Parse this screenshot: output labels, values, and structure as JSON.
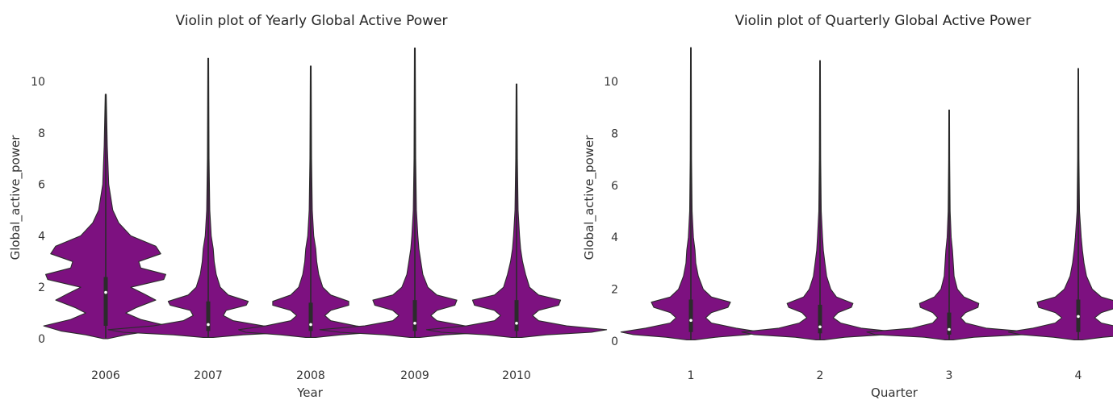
{
  "chart_data": [
    {
      "type": "violin",
      "title": "Violin plot of Yearly Global Active Power",
      "xlabel": "Year",
      "ylabel": "Global_active_power",
      "categories": [
        "2006",
        "2007",
        "2008",
        "2009",
        "2010"
      ],
      "ylim": [
        -0.3,
        11.3
      ],
      "yticks": [
        "0",
        "2",
        "4",
        "6",
        "8",
        "10"
      ],
      "grid": false,
      "fill_color": "#7d1180",
      "outline_color": "#2b2b2b",
      "violins": [
        {
          "category": "2006",
          "min": 0.0,
          "max": 9.5,
          "q1": 0.5,
          "median": 1.8,
          "q3": 2.4,
          "density": [
            [
              0.0,
              0.02
            ],
            [
              0.15,
              0.2
            ],
            [
              0.3,
              0.45
            ],
            [
              0.5,
              0.62
            ],
            [
              0.75,
              0.35
            ],
            [
              1.0,
              0.2
            ],
            [
              1.2,
              0.3
            ],
            [
              1.5,
              0.5
            ],
            [
              1.75,
              0.38
            ],
            [
              2.0,
              0.25
            ],
            [
              2.3,
              0.58
            ],
            [
              2.5,
              0.6
            ],
            [
              2.75,
              0.35
            ],
            [
              3.0,
              0.33
            ],
            [
              3.3,
              0.55
            ],
            [
              3.6,
              0.5
            ],
            [
              4.0,
              0.25
            ],
            [
              4.5,
              0.13
            ],
            [
              5.0,
              0.07
            ],
            [
              6.0,
              0.03
            ],
            [
              7.5,
              0.015
            ],
            [
              9.5,
              0.005
            ]
          ]
        },
        {
          "category": "2007",
          "min": 0.05,
          "max": 10.9,
          "q1": 0.3,
          "median": 0.55,
          "q3": 1.45,
          "density": [
            [
              0.05,
              0.05
            ],
            [
              0.15,
              0.35
            ],
            [
              0.25,
              0.85
            ],
            [
              0.35,
              1.0
            ],
            [
              0.5,
              0.55
            ],
            [
              0.7,
              0.25
            ],
            [
              0.9,
              0.15
            ],
            [
              1.1,
              0.18
            ],
            [
              1.3,
              0.38
            ],
            [
              1.45,
              0.4
            ],
            [
              1.7,
              0.2
            ],
            [
              2.0,
              0.12
            ],
            [
              2.5,
              0.08
            ],
            [
              3.0,
              0.06
            ],
            [
              3.5,
              0.05
            ],
            [
              4.0,
              0.03
            ],
            [
              5.0,
              0.015
            ],
            [
              7.0,
              0.008
            ],
            [
              10.9,
              0.004
            ]
          ]
        },
        {
          "category": "2008",
          "min": 0.05,
          "max": 10.6,
          "q1": 0.3,
          "median": 0.55,
          "q3": 1.4,
          "density": [
            [
              0.05,
              0.05
            ],
            [
              0.15,
              0.3
            ],
            [
              0.25,
              0.65
            ],
            [
              0.35,
              0.72
            ],
            [
              0.5,
              0.45
            ],
            [
              0.7,
              0.2
            ],
            [
              0.9,
              0.14
            ],
            [
              1.1,
              0.2
            ],
            [
              1.3,
              0.38
            ],
            [
              1.45,
              0.38
            ],
            [
              1.7,
              0.2
            ],
            [
              2.0,
              0.12
            ],
            [
              2.5,
              0.08
            ],
            [
              3.0,
              0.06
            ],
            [
              3.5,
              0.05
            ],
            [
              4.0,
              0.03
            ],
            [
              5.0,
              0.015
            ],
            [
              7.0,
              0.008
            ],
            [
              10.6,
              0.004
            ]
          ]
        },
        {
          "category": "2009",
          "min": 0.05,
          "max": 11.3,
          "q1": 0.3,
          "median": 0.6,
          "q3": 1.5,
          "density": [
            [
              0.05,
              0.05
            ],
            [
              0.15,
              0.3
            ],
            [
              0.25,
              0.75
            ],
            [
              0.35,
              0.95
            ],
            [
              0.5,
              0.5
            ],
            [
              0.7,
              0.22
            ],
            [
              0.9,
              0.16
            ],
            [
              1.1,
              0.22
            ],
            [
              1.3,
              0.4
            ],
            [
              1.5,
              0.42
            ],
            [
              1.7,
              0.22
            ],
            [
              2.0,
              0.13
            ],
            [
              2.5,
              0.08
            ],
            [
              3.0,
              0.06
            ],
            [
              3.5,
              0.04
            ],
            [
              4.0,
              0.03
            ],
            [
              5.0,
              0.015
            ],
            [
              7.0,
              0.008
            ],
            [
              11.3,
              0.004
            ]
          ]
        },
        {
          "category": "2010",
          "min": 0.05,
          "max": 9.9,
          "q1": 0.3,
          "median": 0.6,
          "q3": 1.5,
          "density": [
            [
              0.05,
              0.05
            ],
            [
              0.15,
              0.3
            ],
            [
              0.25,
              0.75
            ],
            [
              0.35,
              0.9
            ],
            [
              0.5,
              0.5
            ],
            [
              0.7,
              0.22
            ],
            [
              0.9,
              0.16
            ],
            [
              1.1,
              0.22
            ],
            [
              1.3,
              0.42
            ],
            [
              1.5,
              0.44
            ],
            [
              1.7,
              0.22
            ],
            [
              2.0,
              0.13
            ],
            [
              2.5,
              0.09
            ],
            [
              3.0,
              0.06
            ],
            [
              3.5,
              0.04
            ],
            [
              4.0,
              0.03
            ],
            [
              5.0,
              0.015
            ],
            [
              7.0,
              0.008
            ],
            [
              9.9,
              0.004
            ]
          ]
        }
      ]
    },
    {
      "type": "violin",
      "title": "Violin plot of Quarterly Global Active Power",
      "xlabel": "Quarter",
      "ylabel": "Global_active_power",
      "categories": [
        "1",
        "2",
        "3",
        "4"
      ],
      "ylim": [
        -0.3,
        11.3
      ],
      "yticks": [
        "0",
        "2",
        "4",
        "6",
        "8",
        "10"
      ],
      "grid": false,
      "fill_color": "#7d1180",
      "outline_color": "#2b2b2b",
      "violins": [
        {
          "category": "1",
          "min": 0.05,
          "max": 11.3,
          "q1": 0.35,
          "median": 0.8,
          "q3": 1.6,
          "density": [
            [
              0.05,
              0.05
            ],
            [
              0.15,
              0.3
            ],
            [
              0.25,
              0.7
            ],
            [
              0.35,
              0.85
            ],
            [
              0.5,
              0.55
            ],
            [
              0.7,
              0.25
            ],
            [
              0.9,
              0.18
            ],
            [
              1.1,
              0.25
            ],
            [
              1.3,
              0.45
            ],
            [
              1.5,
              0.48
            ],
            [
              1.7,
              0.25
            ],
            [
              2.0,
              0.15
            ],
            [
              2.5,
              0.09
            ],
            [
              3.0,
              0.06
            ],
            [
              3.5,
              0.05
            ],
            [
              4.0,
              0.03
            ],
            [
              5.0,
              0.015
            ],
            [
              7.0,
              0.008
            ],
            [
              11.3,
              0.004
            ]
          ]
        },
        {
          "category": "2",
          "min": 0.05,
          "max": 10.8,
          "q1": 0.3,
          "median": 0.55,
          "q3": 1.4,
          "density": [
            [
              0.05,
              0.05
            ],
            [
              0.15,
              0.3
            ],
            [
              0.25,
              0.8
            ],
            [
              0.35,
              0.95
            ],
            [
              0.5,
              0.5
            ],
            [
              0.7,
              0.25
            ],
            [
              0.9,
              0.16
            ],
            [
              1.1,
              0.22
            ],
            [
              1.3,
              0.38
            ],
            [
              1.45,
              0.4
            ],
            [
              1.7,
              0.2
            ],
            [
              2.0,
              0.13
            ],
            [
              2.5,
              0.08
            ],
            [
              3.0,
              0.06
            ],
            [
              3.5,
              0.04
            ],
            [
              4.0,
              0.03
            ],
            [
              5.0,
              0.015
            ],
            [
              7.0,
              0.008
            ],
            [
              10.8,
              0.004
            ]
          ]
        },
        {
          "category": "3",
          "min": 0.05,
          "max": 8.9,
          "q1": 0.25,
          "median": 0.45,
          "q3": 1.1,
          "density": [
            [
              0.05,
              0.05
            ],
            [
              0.15,
              0.3
            ],
            [
              0.25,
              0.9
            ],
            [
              0.35,
              1.0
            ],
            [
              0.5,
              0.45
            ],
            [
              0.7,
              0.2
            ],
            [
              0.9,
              0.14
            ],
            [
              1.1,
              0.2
            ],
            [
              1.3,
              0.35
            ],
            [
              1.45,
              0.36
            ],
            [
              1.7,
              0.18
            ],
            [
              2.0,
              0.1
            ],
            [
              2.5,
              0.06
            ],
            [
              3.0,
              0.05
            ],
            [
              3.5,
              0.04
            ],
            [
              4.0,
              0.025
            ],
            [
              5.0,
              0.012
            ],
            [
              7.0,
              0.006
            ],
            [
              8.9,
              0.004
            ]
          ]
        },
        {
          "category": "4",
          "min": 0.05,
          "max": 10.5,
          "q1": 0.35,
          "median": 0.95,
          "q3": 1.6,
          "density": [
            [
              0.05,
              0.05
            ],
            [
              0.15,
              0.3
            ],
            [
              0.25,
              0.7
            ],
            [
              0.35,
              0.85
            ],
            [
              0.5,
              0.55
            ],
            [
              0.7,
              0.28
            ],
            [
              0.9,
              0.2
            ],
            [
              1.1,
              0.28
            ],
            [
              1.3,
              0.48
            ],
            [
              1.5,
              0.5
            ],
            [
              1.7,
              0.28
            ],
            [
              2.0,
              0.17
            ],
            [
              2.5,
              0.1
            ],
            [
              3.0,
              0.07
            ],
            [
              3.5,
              0.05
            ],
            [
              4.0,
              0.035
            ],
            [
              5.0,
              0.015
            ],
            [
              7.0,
              0.008
            ],
            [
              10.5,
              0.004
            ]
          ]
        }
      ]
    }
  ]
}
